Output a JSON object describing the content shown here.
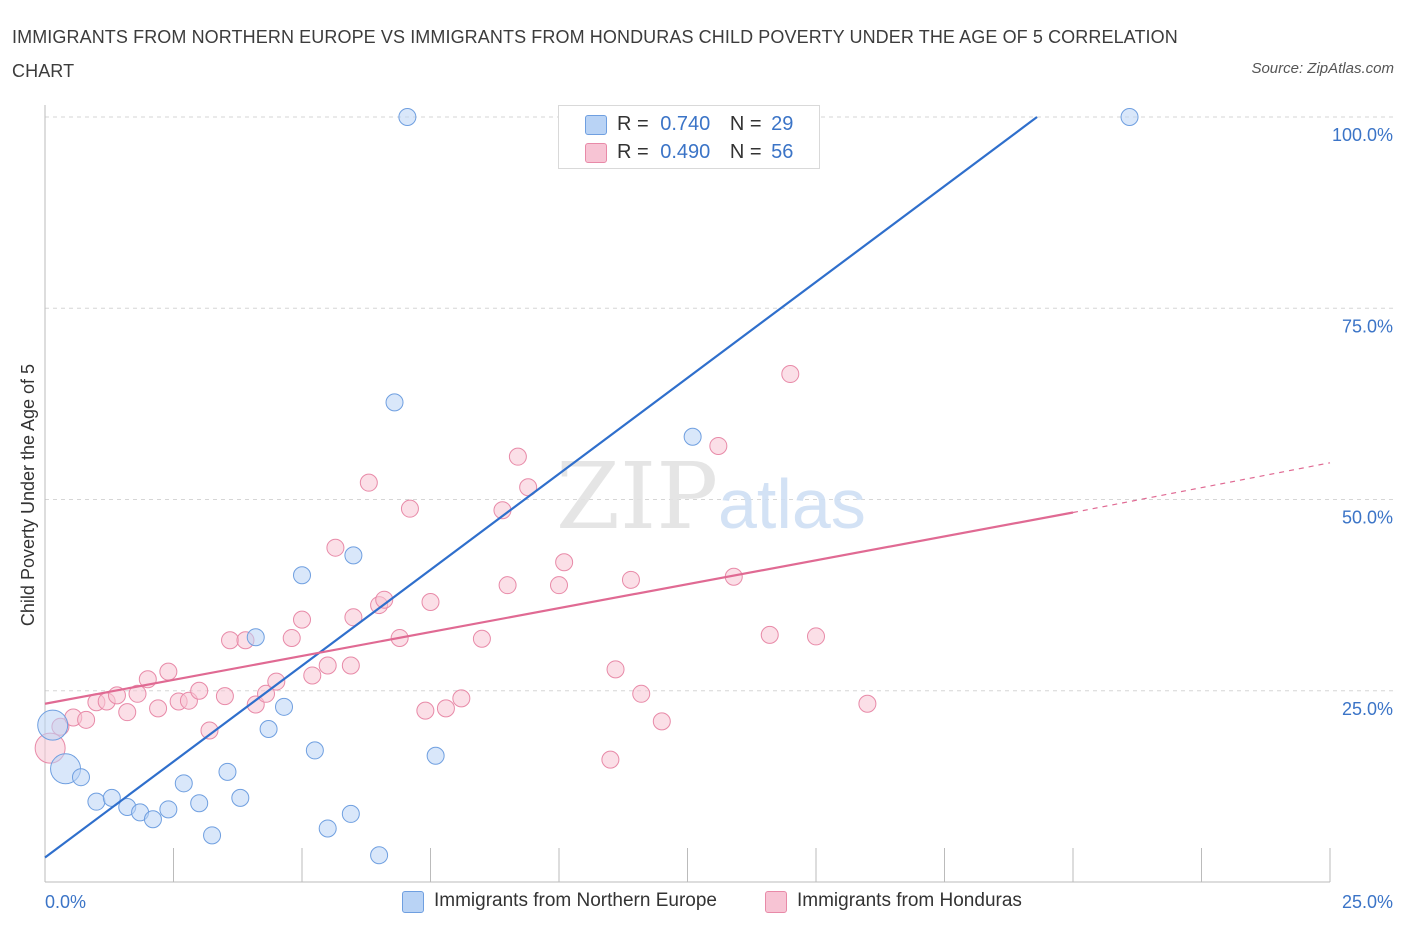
{
  "title": "IMMIGRANTS FROM NORTHERN EUROPE VS IMMIGRANTS FROM HONDURAS CHILD POVERTY UNDER THE AGE OF 5 CORRELATION CHART",
  "source": "Source: ZipAtlas.com",
  "watermark": {
    "zip": "ZIP",
    "atlas": "atlas"
  },
  "legend": {
    "r_label": "R =",
    "n_label": "N =",
    "entries": [
      {
        "name": "Immigrants from Northern Europe",
        "r": "0.740",
        "n": "29",
        "fill": "#b9d3f5",
        "stroke": "#6f9fe0"
      },
      {
        "name": "Immigrants from Honduras",
        "r": "0.490",
        "n": "56",
        "fill": "#f7c4d4",
        "stroke": "#e88aa8"
      }
    ]
  },
  "colors": {
    "blue_line": "#2f6fcc",
    "pink_line": "#e06a93",
    "tick_text": "#3b74c7",
    "grid": "#d6d6d6"
  },
  "chart_data": {
    "type": "scatter",
    "title": "IMMIGRANTS FROM NORTHERN EUROPE VS IMMIGRANTS FROM HONDURAS CHILD POVERTY UNDER THE AGE OF 5 CORRELATION CHART",
    "xlabel": "",
    "ylabel": "Child Poverty Under the Age of 5",
    "xlim": [
      0,
      25
    ],
    "ylim": [
      0,
      100
    ],
    "x_tick_labels": [
      {
        "value": 0,
        "label": "0.0%"
      },
      {
        "value": 25,
        "label": "25.0%"
      }
    ],
    "y_tick_labels": [
      {
        "value": 25,
        "label": "25.0%"
      },
      {
        "value": 50,
        "label": "50.0%"
      },
      {
        "value": 75,
        "label": "75.0%"
      },
      {
        "value": 100,
        "label": "100.0%"
      }
    ],
    "series": [
      {
        "name": "Immigrants from Northern Europe",
        "r": 0.74,
        "n": 29,
        "trend": {
          "x": [
            0,
            19.3
          ],
          "y": [
            3.2,
            100
          ]
        },
        "points": [
          {
            "x": 0.15,
            "y": 20.5,
            "s": "l"
          },
          {
            "x": 0.4,
            "y": 14.8,
            "s": "l"
          },
          {
            "x": 0.7,
            "y": 13.7
          },
          {
            "x": 1.0,
            "y": 10.5
          },
          {
            "x": 1.3,
            "y": 11.0
          },
          {
            "x": 1.6,
            "y": 9.8
          },
          {
            "x": 1.85,
            "y": 9.1
          },
          {
            "x": 2.1,
            "y": 8.2
          },
          {
            "x": 2.4,
            "y": 9.5
          },
          {
            "x": 2.7,
            "y": 12.9
          },
          {
            "x": 3.0,
            "y": 10.3
          },
          {
            "x": 3.25,
            "y": 6.1
          },
          {
            "x": 3.55,
            "y": 14.4
          },
          {
            "x": 3.8,
            "y": 11.0
          },
          {
            "x": 4.1,
            "y": 32.0
          },
          {
            "x": 4.35,
            "y": 20.0
          },
          {
            "x": 4.65,
            "y": 22.9
          },
          {
            "x": 5.0,
            "y": 40.1
          },
          {
            "x": 5.25,
            "y": 17.2
          },
          {
            "x": 5.5,
            "y": 7.0
          },
          {
            "x": 5.95,
            "y": 8.9
          },
          {
            "x": 6.0,
            "y": 42.7
          },
          {
            "x": 6.5,
            "y": 3.5
          },
          {
            "x": 6.8,
            "y": 62.7
          },
          {
            "x": 7.6,
            "y": 16.5
          },
          {
            "x": 7.05,
            "y": 100
          },
          {
            "x": 10.25,
            "y": 100
          },
          {
            "x": 12.6,
            "y": 58.2
          },
          {
            "x": 21.1,
            "y": 100
          }
        ]
      },
      {
        "name": "Immigrants from Honduras",
        "r": 0.49,
        "n": 56,
        "trend": {
          "x": [
            0,
            20
          ],
          "y": [
            23.3,
            48.3
          ]
        },
        "trend_dashed": {
          "x": [
            20,
            25
          ],
          "y": [
            48.3,
            54.8
          ]
        },
        "points": [
          {
            "x": 0.1,
            "y": 17.5,
            "s": "l"
          },
          {
            "x": 0.3,
            "y": 20.3
          },
          {
            "x": 0.55,
            "y": 21.5
          },
          {
            "x": 0.8,
            "y": 21.2
          },
          {
            "x": 1.0,
            "y": 23.5
          },
          {
            "x": 1.2,
            "y": 23.6
          },
          {
            "x": 1.4,
            "y": 24.4
          },
          {
            "x": 1.6,
            "y": 22.2
          },
          {
            "x": 1.8,
            "y": 24.6
          },
          {
            "x": 2.0,
            "y": 26.5
          },
          {
            "x": 2.2,
            "y": 22.7
          },
          {
            "x": 2.4,
            "y": 27.5
          },
          {
            "x": 2.6,
            "y": 23.6
          },
          {
            "x": 2.8,
            "y": 23.7
          },
          {
            "x": 3.0,
            "y": 25.0
          },
          {
            "x": 3.2,
            "y": 19.8
          },
          {
            "x": 3.5,
            "y": 24.3
          },
          {
            "x": 3.6,
            "y": 31.6
          },
          {
            "x": 3.9,
            "y": 31.6
          },
          {
            "x": 4.1,
            "y": 23.2
          },
          {
            "x": 4.3,
            "y": 24.6
          },
          {
            "x": 4.5,
            "y": 26.2
          },
          {
            "x": 4.8,
            "y": 31.9
          },
          {
            "x": 5.0,
            "y": 34.3
          },
          {
            "x": 5.2,
            "y": 27.0
          },
          {
            "x": 5.5,
            "y": 28.3
          },
          {
            "x": 5.65,
            "y": 43.7
          },
          {
            "x": 5.95,
            "y": 28.3
          },
          {
            "x": 6.0,
            "y": 34.6
          },
          {
            "x": 6.3,
            "y": 52.2
          },
          {
            "x": 6.5,
            "y": 36.2
          },
          {
            "x": 6.6,
            "y": 36.9
          },
          {
            "x": 6.9,
            "y": 31.9
          },
          {
            "x": 7.1,
            "y": 48.8
          },
          {
            "x": 7.4,
            "y": 22.4
          },
          {
            "x": 7.5,
            "y": 36.6
          },
          {
            "x": 7.8,
            "y": 22.7
          },
          {
            "x": 8.1,
            "y": 24.0
          },
          {
            "x": 8.5,
            "y": 31.8
          },
          {
            "x": 8.9,
            "y": 48.6
          },
          {
            "x": 9.0,
            "y": 38.8
          },
          {
            "x": 9.2,
            "y": 55.6
          },
          {
            "x": 9.4,
            "y": 51.6
          },
          {
            "x": 10.0,
            "y": 38.8
          },
          {
            "x": 10.1,
            "y": 41.8
          },
          {
            "x": 11.0,
            "y": 16.0
          },
          {
            "x": 11.1,
            "y": 27.8
          },
          {
            "x": 11.4,
            "y": 39.5
          },
          {
            "x": 11.6,
            "y": 24.6
          },
          {
            "x": 12.0,
            "y": 21.0
          },
          {
            "x": 13.1,
            "y": 57.0
          },
          {
            "x": 13.4,
            "y": 39.9
          },
          {
            "x": 14.1,
            "y": 32.3
          },
          {
            "x": 14.5,
            "y": 66.4
          },
          {
            "x": 15.0,
            "y": 32.1
          },
          {
            "x": 16.0,
            "y": 23.3
          }
        ]
      }
    ]
  }
}
